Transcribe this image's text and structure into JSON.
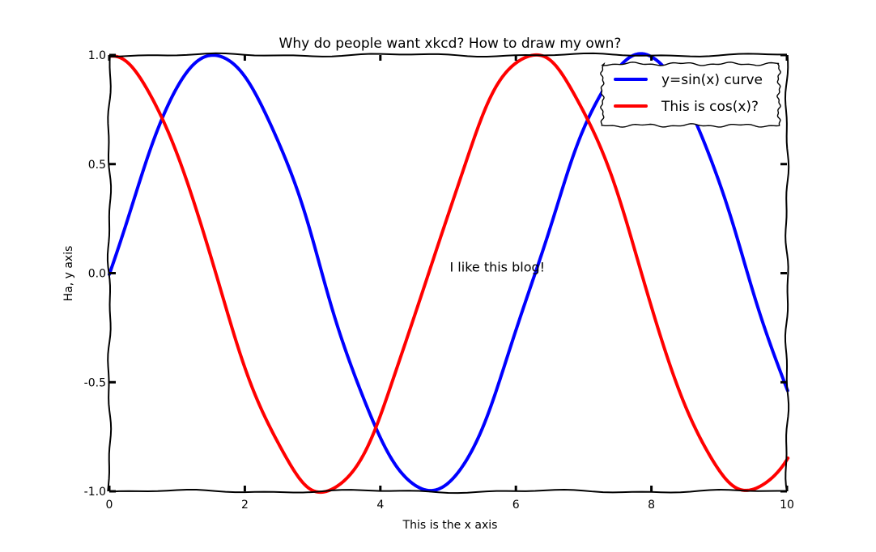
{
  "chart_data": {
    "type": "line",
    "title": "Why do people want xkcd? How to draw my own?",
    "xlabel": "This is the x axis",
    "ylabel": "Ha, y axis",
    "xlim": [
      0,
      10
    ],
    "ylim": [
      -1.0,
      1.0
    ],
    "xticks": [
      0,
      2,
      4,
      6,
      8,
      10
    ],
    "xtick_labels": [
      "0",
      "2",
      "4",
      "6",
      "8",
      "10"
    ],
    "yticks": [
      -1.0,
      -0.5,
      0.0,
      0.5,
      1.0
    ],
    "ytick_labels": [
      "-1.0",
      "-0.5",
      "0.0",
      "0.5",
      "1.0"
    ],
    "grid": false,
    "legend_position": "top-right",
    "series": [
      {
        "name": "y=sin(x) curve",
        "color": "#0000ff",
        "function": "sin(x)",
        "x": [
          0,
          0.5,
          1.0,
          1.5,
          2.0,
          2.5,
          3.0,
          3.5,
          4.0,
          4.5,
          5.0,
          5.5,
          6.0,
          6.5,
          7.0,
          7.5,
          8.0,
          8.5,
          9.0,
          9.5,
          10.0
        ],
        "values": [
          0.0,
          0.479,
          0.841,
          0.997,
          0.909,
          0.598,
          0.141,
          -0.351,
          -0.757,
          -0.978,
          -0.959,
          -0.706,
          -0.279,
          0.215,
          0.657,
          0.938,
          0.989,
          0.798,
          0.412,
          -0.075,
          -0.544
        ]
      },
      {
        "name": "This is cos(x)?",
        "color": "#ff0000",
        "function": "cos(x)",
        "x": [
          0,
          0.5,
          1.0,
          1.5,
          2.0,
          2.5,
          3.0,
          3.5,
          4.0,
          4.5,
          5.0,
          5.5,
          6.0,
          6.5,
          7.0,
          7.5,
          8.0,
          8.5,
          9.0,
          9.5,
          10.0
        ],
        "values": [
          1.0,
          0.878,
          0.54,
          0.071,
          -0.416,
          -0.801,
          -0.99,
          -0.936,
          -0.654,
          -0.211,
          0.284,
          0.709,
          0.96,
          0.977,
          0.754,
          0.347,
          -0.146,
          -0.602,
          -0.911,
          -0.997,
          -0.839
        ]
      }
    ],
    "annotations": [
      {
        "text": "I like this blog!",
        "x": 5.0,
        "y": 0.0
      }
    ]
  }
}
